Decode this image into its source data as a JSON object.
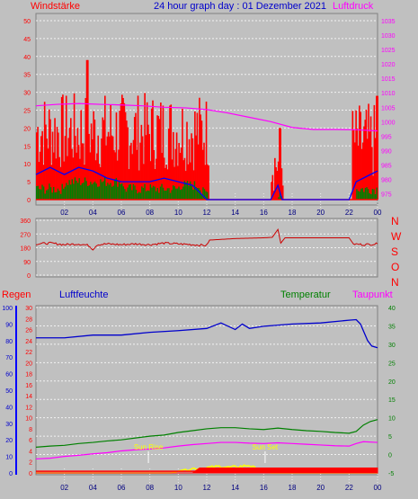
{
  "header": {
    "title": "24 hour graph day : 01 Dezember 2021",
    "left_label": "Windstärke",
    "right_label": "Luftdruck"
  },
  "direction_labels": [
    "N",
    "W",
    "S",
    "O",
    "N"
  ],
  "bottom_header": {
    "regen": "Regen",
    "luftfeuchte": "Luftfeuchte",
    "temperatur": "Temperatur",
    "taupunkt": "Taupunkt"
  },
  "sun": {
    "rise_label": "Sun Rise",
    "rise_hour": 7.9,
    "set_label": "Sun Set",
    "set_hour": 16.1
  },
  "colors": {
    "wind_gust": "#ff0000",
    "wind_avg": "#0000ff",
    "wind_min": "#008000",
    "pressure": "#ff00ff",
    "direction": "#cc0000",
    "humidity": "#0000cc",
    "temperature": "#008000",
    "dewpoint": "#ff00ff",
    "rain": "#ff0000",
    "solar": "#ffff00"
  },
  "chart_data": [
    {
      "type": "bar",
      "name": "wind_pressure",
      "x_ticks": [
        "02",
        "04",
        "06",
        "08",
        "10",
        "12",
        "14",
        "16",
        "18",
        "20",
        "22",
        "00"
      ],
      "y_left_ticks": [
        "50",
        "45",
        "40",
        "35",
        "30",
        "25",
        "20",
        "15",
        "10",
        "5",
        "0"
      ],
      "y_right_ticks": [
        "1035",
        "1030",
        "1025",
        "1020",
        "1015",
        "1010",
        "1005",
        "1000",
        "995",
        "990",
        "985",
        "980",
        "975"
      ],
      "ylim_left": [
        0,
        50
      ],
      "ylim_right": [
        973,
        1035
      ],
      "gust_segments": [
        {
          "x0": 0.0,
          "x1": 12.1,
          "lo": 8,
          "hi": 30,
          "peak_x": 3.6,
          "peak": 39
        },
        {
          "x0": 16.5,
          "x1": 17.3,
          "lo": 2,
          "hi": 18,
          "peak_x": 17.1,
          "peak": 20
        },
        {
          "x0": 22.2,
          "x1": 24.0,
          "lo": 5,
          "hi": 27,
          "peak_x": 23.9,
          "peak": 29
        }
      ],
      "pressure": [
        [
          0,
          1005.5
        ],
        [
          1.5,
          1006
        ],
        [
          3,
          1006.3
        ],
        [
          4.5,
          1006
        ],
        [
          6,
          1005.8
        ],
        [
          7.5,
          1005.5
        ],
        [
          9,
          1005
        ],
        [
          10.5,
          1004.8
        ],
        [
          12,
          1004.2
        ],
        [
          13.5,
          1003
        ],
        [
          15,
          1001.5
        ],
        [
          16.5,
          1000
        ],
        [
          18,
          998
        ],
        [
          19.5,
          997.3
        ],
        [
          21,
          997.3
        ],
        [
          22.5,
          997.2
        ],
        [
          24,
          996.8
        ]
      ],
      "wind_avg": [
        [
          0,
          7
        ],
        [
          1,
          9
        ],
        [
          2,
          7
        ],
        [
          3,
          9
        ],
        [
          4,
          8
        ],
        [
          5,
          6
        ],
        [
          6,
          5
        ],
        [
          7,
          5
        ],
        [
          8,
          5
        ],
        [
          9,
          6
        ],
        [
          10,
          5
        ],
        [
          11,
          4
        ],
        [
          12,
          0
        ],
        [
          16.5,
          0
        ],
        [
          17,
          4
        ],
        [
          17.3,
          0
        ],
        [
          22,
          0
        ],
        [
          22.5,
          5
        ],
        [
          23,
          6
        ],
        [
          23.5,
          7
        ],
        [
          24,
          8
        ]
      ],
      "wind_min": [
        [
          0,
          3
        ],
        [
          2,
          5
        ],
        [
          4,
          5
        ],
        [
          6,
          3
        ],
        [
          8,
          3
        ],
        [
          10,
          4
        ],
        [
          11.5,
          2
        ],
        [
          12,
          0
        ],
        [
          17,
          2
        ],
        [
          17.3,
          0
        ],
        [
          22.5,
          3
        ],
        [
          24,
          5
        ]
      ]
    },
    {
      "type": "line",
      "name": "wind_direction",
      "y_ticks": [
        "360",
        "270",
        "180",
        "90",
        "0"
      ],
      "ylim": [
        0,
        360
      ],
      "points": [
        [
          0,
          205
        ],
        [
          1,
          210
        ],
        [
          2,
          200
        ],
        [
          3,
          205
        ],
        [
          3.7,
          195
        ],
        [
          4,
          170
        ],
        [
          4.3,
          200
        ],
        [
          5,
          205
        ],
        [
          6,
          200
        ],
        [
          7,
          205
        ],
        [
          8,
          200
        ],
        [
          9,
          210
        ],
        [
          10,
          205
        ],
        [
          11,
          200
        ],
        [
          12,
          195
        ],
        [
          12.2,
          230
        ],
        [
          14,
          240
        ],
        [
          16,
          245
        ],
        [
          16.6,
          248
        ],
        [
          17.0,
          300
        ],
        [
          17.2,
          210
        ],
        [
          17.5,
          245
        ],
        [
          18,
          245
        ],
        [
          19,
          245
        ],
        [
          20,
          245
        ],
        [
          22,
          245
        ],
        [
          22.3,
          205
        ],
        [
          23,
          200
        ],
        [
          24,
          205
        ]
      ]
    },
    {
      "type": "line",
      "name": "humidity_temp_rain",
      "y_rain_ticks": [
        "100",
        "90",
        "80",
        "70",
        "60",
        "50",
        "40",
        "30",
        "20",
        "10",
        "0"
      ],
      "y_hum_ticks": [
        "30",
        "28",
        "26",
        "24",
        "22",
        "20",
        "18",
        "16",
        "14",
        "12",
        "10",
        "8",
        "6",
        "4",
        "2",
        "0"
      ],
      "y_temp_ticks": [
        "40",
        "35",
        "30",
        "25",
        "20",
        "15",
        "10",
        "5",
        "0",
        "-5"
      ],
      "ylim_humidity": [
        0,
        30
      ],
      "ylim_temperature": [
        -5,
        40
      ],
      "ylim_rain": [
        0,
        100
      ],
      "humidity": [
        [
          0,
          24.5
        ],
        [
          2,
          24.5
        ],
        [
          4,
          25
        ],
        [
          6,
          25
        ],
        [
          8,
          25.5
        ],
        [
          10,
          25.8
        ],
        [
          12,
          26.2
        ],
        [
          13,
          27.2
        ],
        [
          14,
          26
        ],
        [
          14.5,
          27
        ],
        [
          15,
          26.2
        ],
        [
          16,
          26.6
        ],
        [
          18,
          27
        ],
        [
          20,
          27.2
        ],
        [
          22,
          27.7
        ],
        [
          22.5,
          27.8
        ],
        [
          22.8,
          27
        ],
        [
          23.3,
          24
        ],
        [
          23.6,
          23
        ],
        [
          24,
          22.7
        ]
      ],
      "temperature": [
        [
          0,
          2
        ],
        [
          1,
          2.3
        ],
        [
          2,
          2.5
        ],
        [
          3,
          3
        ],
        [
          4,
          3.3
        ],
        [
          5,
          3.7
        ],
        [
          6,
          4
        ],
        [
          7,
          4.5
        ],
        [
          8,
          5
        ],
        [
          9,
          5.3
        ],
        [
          10,
          6
        ],
        [
          11,
          6.5
        ],
        [
          12,
          7
        ],
        [
          13,
          7.3
        ],
        [
          14,
          7.3
        ],
        [
          15,
          7
        ],
        [
          16,
          6.8
        ],
        [
          17,
          7.2
        ],
        [
          18,
          6.8
        ],
        [
          19,
          6.5
        ],
        [
          20,
          6.3
        ],
        [
          21,
          6
        ],
        [
          22,
          5.8
        ],
        [
          22.5,
          6.3
        ],
        [
          23,
          8
        ],
        [
          23.5,
          9
        ],
        [
          24,
          9.5
        ]
      ],
      "dewpoint": [
        [
          0,
          -1.2
        ],
        [
          1,
          -1
        ],
        [
          2,
          -0.5
        ],
        [
          3,
          -0.2
        ],
        [
          4,
          0.2
        ],
        [
          5,
          0.5
        ],
        [
          6,
          1
        ],
        [
          7,
          1.3
        ],
        [
          8,
          1.5
        ],
        [
          9,
          1.8
        ],
        [
          10,
          2.3
        ],
        [
          11,
          2.7
        ],
        [
          12,
          3
        ],
        [
          13,
          3.3
        ],
        [
          14,
          3.3
        ],
        [
          15,
          3.1
        ],
        [
          16,
          3
        ],
        [
          17,
          3.2
        ],
        [
          18,
          3
        ],
        [
          19,
          2.8
        ],
        [
          20,
          2.6
        ],
        [
          21,
          2.4
        ],
        [
          22,
          2.3
        ],
        [
          22.5,
          3
        ],
        [
          23,
          3.5
        ],
        [
          24,
          3.3
        ]
      ],
      "rain": [
        [
          0,
          1
        ],
        [
          24,
          1
        ]
      ],
      "rain_total": [
        [
          0,
          0
        ],
        [
          11,
          0
        ],
        [
          11.5,
          3
        ],
        [
          24,
          3
        ]
      ],
      "solar": [
        [
          0,
          -5
        ],
        [
          9.5,
          -5
        ],
        [
          10.5,
          -4
        ],
        [
          11,
          -3.8
        ],
        [
          12,
          -3.6
        ],
        [
          13,
          -3.2
        ],
        [
          13.5,
          -3.5
        ],
        [
          14,
          -3.4
        ],
        [
          15,
          -2.9
        ],
        [
          15.5,
          -4
        ],
        [
          16,
          -4.5
        ],
        [
          16.5,
          -5
        ],
        [
          24,
          -5
        ]
      ]
    }
  ]
}
